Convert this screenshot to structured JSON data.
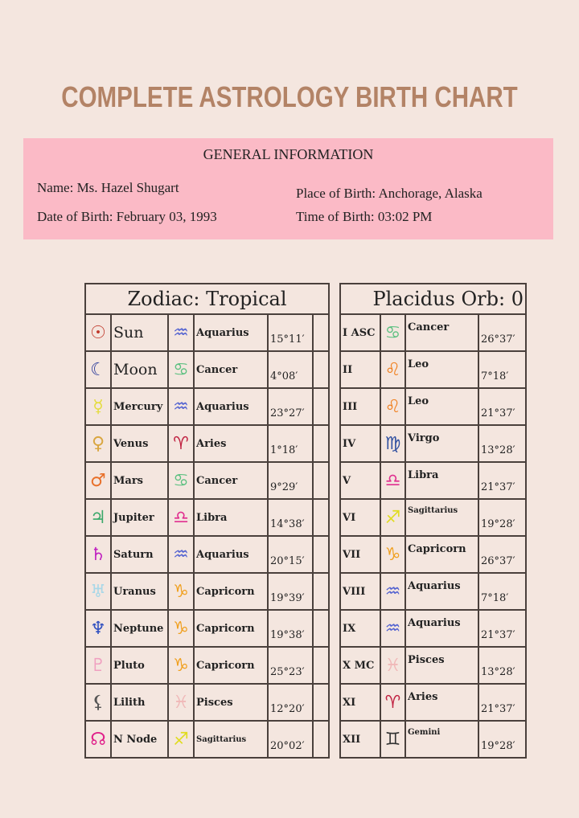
{
  "title": "COMPLETE ASTROLOGY BIRTH CHART",
  "general_info": {
    "heading": "GENERAL INFORMATION",
    "name": "Name: Ms. Hazel Shugart",
    "date_of_birth": "Date of Birth: February 03, 1993",
    "place_of_birth": "Place of Birth: Anchorage, Alaska",
    "time_of_birth": "Time of Birth: 03:02 PM"
  },
  "colors": {
    "background": "#f4e6df",
    "info_box": "#fbbac6",
    "title": "#b38366"
  },
  "zodiac_table": {
    "heading": "Zodiac: Tropical",
    "rows": [
      {
        "planet": "Sun",
        "planet_icon": "sun-icon",
        "sign": "Aquarius",
        "degree": "15°11′"
      },
      {
        "planet": "Moon",
        "planet_icon": "moon-icon",
        "sign": "Cancer",
        "degree": "4°08′"
      },
      {
        "planet": "Mercury",
        "planet_icon": "mercury-icon",
        "sign": "Aquarius",
        "degree": "23°27′"
      },
      {
        "planet": "Venus",
        "planet_icon": "venus-icon",
        "sign": "Aries",
        "degree": "1°18′"
      },
      {
        "planet": "Mars",
        "planet_icon": "mars-icon",
        "sign": "Cancer",
        "degree": "9°29′"
      },
      {
        "planet": "Jupiter",
        "planet_icon": "jupiter-icon",
        "sign": "Libra",
        "degree": "14°38′"
      },
      {
        "planet": "Saturn",
        "planet_icon": "saturn-icon",
        "sign": "Aquarius",
        "degree": "20°15′"
      },
      {
        "planet": "Uranus",
        "planet_icon": "uranus-icon",
        "sign": "Capricorn",
        "degree": "19°39′"
      },
      {
        "planet": "Neptune",
        "planet_icon": "neptune-icon",
        "sign": "Capricorn",
        "degree": "19°38′"
      },
      {
        "planet": "Pluto",
        "planet_icon": "pluto-icon",
        "sign": "Capricorn",
        "degree": "25°23′"
      },
      {
        "planet": "Lilith",
        "planet_icon": "lilith-icon",
        "sign": "Pisces",
        "degree": "12°20′"
      },
      {
        "planet": "N Node",
        "planet_icon": "north-node-icon",
        "sign": "Sagittarius",
        "degree": "20°02′"
      }
    ]
  },
  "houses_table": {
    "heading": "Placidus Orb: 0",
    "rows": [
      {
        "house": "I ASC",
        "sign": "Cancer",
        "degree": "26°37′"
      },
      {
        "house": "II",
        "sign": "Leo",
        "degree": "7°18′"
      },
      {
        "house": "III",
        "sign": "Leo",
        "degree": "21°37′"
      },
      {
        "house": "IV",
        "sign": "Virgo",
        "degree": "13°28′"
      },
      {
        "house": "V",
        "sign": "Libra",
        "degree": "21°37′"
      },
      {
        "house": "VI",
        "sign": "Sagittarius",
        "degree": "19°28′"
      },
      {
        "house": "VII",
        "sign": "Capricorn",
        "degree": "26°37′"
      },
      {
        "house": "VIII",
        "sign": "Aquarius",
        "degree": "7°18′"
      },
      {
        "house": "IX",
        "sign": "Aquarius",
        "degree": "21°37′"
      },
      {
        "house": "X MC",
        "sign": "Pisces",
        "degree": "13°28′"
      },
      {
        "house": "XI",
        "sign": "Aries",
        "degree": "21°37′"
      },
      {
        "house": "XII",
        "sign": "Gemini",
        "degree": "19°28′"
      }
    ]
  }
}
